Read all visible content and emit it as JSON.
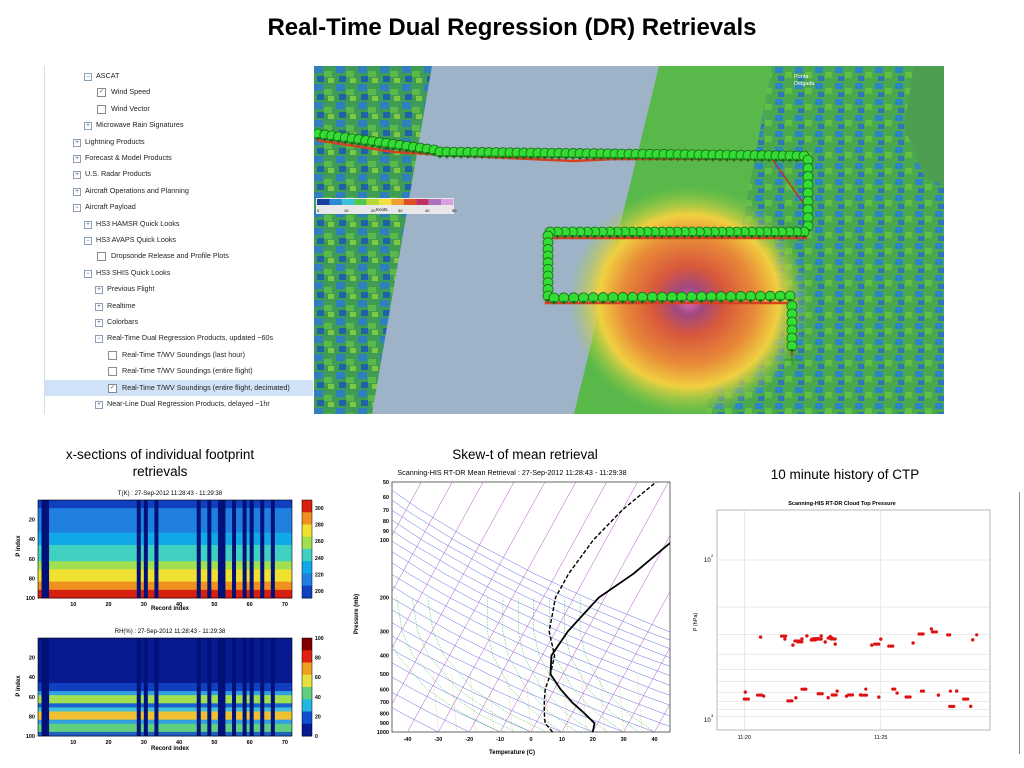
{
  "page": {
    "title": "Real-Time Dual Regression (DR) Retrievals"
  },
  "layer_tree": {
    "items": [
      {
        "label": "ASCAT",
        "indent": 2,
        "expander": "−",
        "checkbox": null,
        "selected": false
      },
      {
        "label": "Wind Speed",
        "indent": 3,
        "expander": null,
        "checkbox": "checked",
        "selected": false
      },
      {
        "label": "Wind Vector",
        "indent": 3,
        "expander": null,
        "checkbox": "unchecked",
        "selected": false
      },
      {
        "label": "Microwave Rain Signatures",
        "indent": 2,
        "expander": "+",
        "checkbox": null,
        "selected": false
      },
      {
        "label": "Lightning Products",
        "indent": 1,
        "expander": "+",
        "checkbox": null,
        "selected": false
      },
      {
        "label": "Forecast & Model Products",
        "indent": 1,
        "expander": "+",
        "checkbox": null,
        "selected": false
      },
      {
        "label": "U.S. Radar Products",
        "indent": 1,
        "expander": "+",
        "checkbox": null,
        "selected": false
      },
      {
        "label": "Aircraft Operations and Planning",
        "indent": 1,
        "expander": "+",
        "checkbox": null,
        "selected": false
      },
      {
        "label": "Aircraft Payload",
        "indent": 1,
        "expander": "−",
        "checkbox": null,
        "selected": false
      },
      {
        "label": "HS3 HAMSR Quick Looks",
        "indent": 2,
        "expander": "+",
        "checkbox": null,
        "selected": false
      },
      {
        "label": "HS3 AVAPS Quick Looks",
        "indent": 2,
        "expander": "−",
        "checkbox": null,
        "selected": false
      },
      {
        "label": "Dropsonde Release and Profile Plots",
        "indent": 3,
        "expander": null,
        "checkbox": "unchecked",
        "selected": false
      },
      {
        "label": "HS3 SHIS Quick Looks",
        "indent": 2,
        "expander": "−",
        "checkbox": null,
        "selected": false
      },
      {
        "label": "Previous Flight",
        "indent": 3,
        "expander": "+",
        "checkbox": null,
        "selected": false
      },
      {
        "label": "Realtime",
        "indent": 3,
        "expander": "+",
        "checkbox": null,
        "selected": false
      },
      {
        "label": "Colorbars",
        "indent": 3,
        "expander": "+",
        "checkbox": null,
        "selected": false
      },
      {
        "label": "Real-Time Dual Regression Products, updated ~60s",
        "indent": 3,
        "expander": "−",
        "checkbox": null,
        "selected": false
      },
      {
        "label": "Real-Time T/WV Soundings (last hour)",
        "indent": 4,
        "expander": null,
        "checkbox": "unchecked",
        "selected": false
      },
      {
        "label": "Real-Time T/WV Soundings (entire flight)",
        "indent": 4,
        "expander": null,
        "checkbox": "unchecked",
        "selected": false
      },
      {
        "label": "Real-Time T/WV Soundings (entire flight, decimated)",
        "indent": 4,
        "expander": null,
        "checkbox": "checked",
        "selected": true
      },
      {
        "label": "Near-Line Dual Regression Products, delayed ~1hr",
        "indent": 3,
        "expander": "+",
        "checkbox": null,
        "selected": false
      }
    ]
  },
  "map": {
    "place_label_line1": "Ponta",
    "place_label_line2": "Delgada",
    "colorbar": {
      "ticks": [
        "0",
        "10",
        "20",
        "30",
        "40",
        "50"
      ],
      "unit": "Knots",
      "colors": [
        "#1a3fa0",
        "#2a8ad4",
        "#3cc0d8",
        "#52c84a",
        "#b8d838",
        "#f0e040",
        "#f0a030",
        "#e05028",
        "#c03060",
        "#b070c0",
        "#d8a0e0"
      ]
    },
    "track_color": "#33dd33"
  },
  "captions": {
    "xsection": "x-sections of individual footprint retrievals",
    "skewt": "Skew-t of mean retrieval",
    "ctp": "10 minute history of CTP"
  },
  "xsection": {
    "panel1_title": "T(K) : 27-Sep-2012 11:28:43 - 11:29:38",
    "panel2_title": "RH(%) : 27-Sep-2012 11:28:43 - 11:29:38",
    "ylabel": "P index",
    "xlabel": "Record index",
    "yticks": [
      "20",
      "40",
      "60",
      "80",
      "100"
    ],
    "xticks": [
      "10",
      "20",
      "30",
      "40",
      "50",
      "60",
      "70"
    ],
    "panel1_cbar": [
      "300",
      "280",
      "260",
      "240",
      "220",
      "200"
    ],
    "panel2_cbar": [
      "100",
      "80",
      "60",
      "40",
      "20",
      "0"
    ]
  },
  "skewt": {
    "title": "Scanning-HIS RT-DR Mean Retrieval : 27-Sep-2012 11:28:43 - 11:29:38",
    "ylabel": "Pressure (mb)",
    "xlabel": "Temperature (C)",
    "yticks": [
      "50",
      "60",
      "70",
      "80",
      "90",
      "100",
      "200",
      "300",
      "400",
      "500",
      "600",
      "700",
      "800",
      "900",
      "1000"
    ],
    "xticks": [
      "-40",
      "-30",
      "-20",
      "-10",
      "0",
      "10",
      "20",
      "30",
      "40"
    ]
  },
  "ctp": {
    "title": "Scanning-HIS RT-DR Cloud Top Pressure",
    "ylabel": "P (hPa)",
    "ytick_top": "10",
    "ytick_top_exp": "2",
    "ytick_bottom": "10",
    "ytick_bottom_exp": "3",
    "xticks": [
      "11:20",
      "11:25"
    ]
  },
  "chart_data": [
    {
      "type": "line",
      "title": "Scanning-HIS RT-DR Mean Retrieval : 27-Sep-2012 11:28:43 - 11:29:38",
      "xlabel": "Temperature (C)",
      "ylabel": "Pressure (mb)",
      "xlim": [
        -45,
        45
      ],
      "ylim": [
        1000,
        50
      ],
      "y_scale": "log",
      "series": [
        {
          "style": "solid",
          "x": [
            20,
            19,
            14,
            8,
            2,
            -4,
            -7,
            -6,
            -2,
            5,
            12,
            18,
            25
          ],
          "y": [
            1000,
            900,
            800,
            700,
            600,
            500,
            400,
            300,
            200,
            150,
            100,
            70,
            50
          ]
        },
        {
          "style": "dashed",
          "x": [
            7,
            3,
            1,
            -1,
            -3,
            -4,
            -6,
            -12,
            -16,
            -16,
            -14,
            -10,
            -4
          ],
          "y": [
            1000,
            900,
            800,
            700,
            600,
            500,
            400,
            300,
            200,
            150,
            100,
            70,
            50
          ]
        }
      ]
    },
    {
      "type": "scatter",
      "title": "Scanning-HIS RT-DR Cloud Top Pressure",
      "xlabel": "",
      "ylabel": "P (hPa)",
      "y_scale": "log",
      "xticks": [
        "11:20",
        "11:25"
      ],
      "series": [
        {
          "marker_color": "#dd1111",
          "x": [
            "11:21",
            "11:22",
            "11:22",
            "11:22",
            "11:23",
            "11:23",
            "11:23",
            "11:23",
            "11:23",
            "11:25",
            "11:25",
            "11:26",
            "11:27",
            "11:28",
            "11:20",
            "11:21",
            "11:22",
            "11:22",
            "11:23",
            "11:23",
            "11:24",
            "11:24",
            "11:25",
            "11:26",
            "11:27",
            "11:28",
            "11:28"
          ],
          "y": [
            330,
            320,
            330,
            310,
            320,
            330,
            300,
            320,
            340,
            340,
            350,
            320,
            280,
            310,
            720,
            720,
            700,
            750,
            730,
            760,
            700,
            740,
            720,
            730,
            710,
            720,
            850
          ]
        }
      ]
    }
  ]
}
